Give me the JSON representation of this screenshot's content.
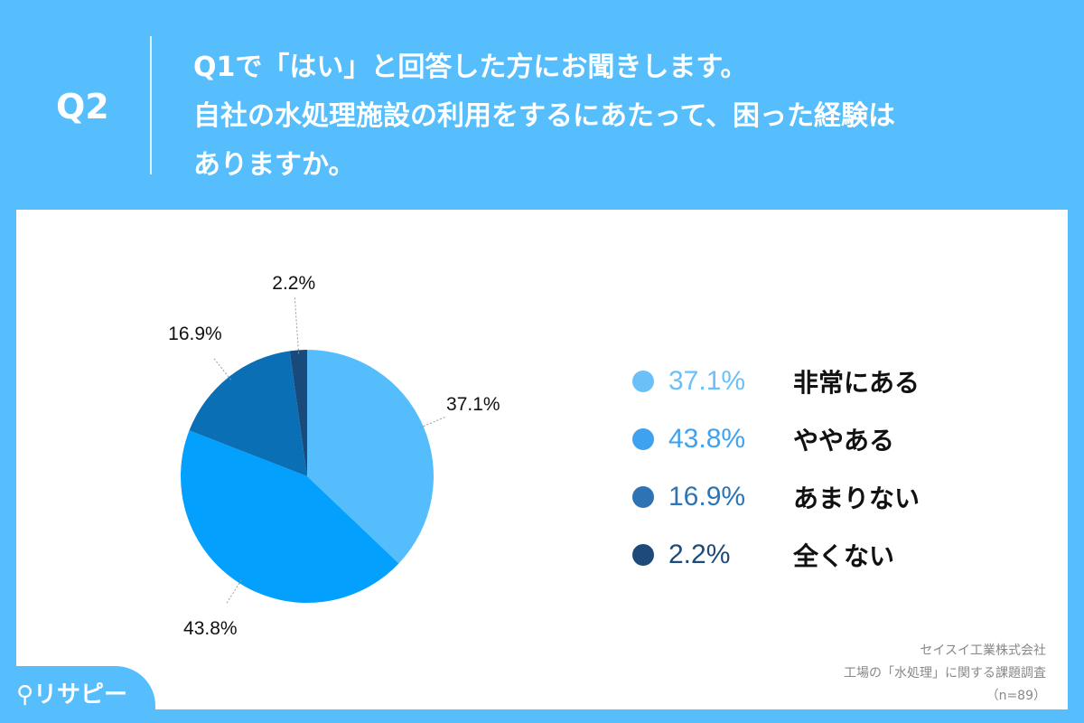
{
  "header": {
    "question_number": "Q2",
    "question_lines": [
      "Q1で「はい」と回答した方にお聞きします。",
      "自社の水処理施設の利用をするにあたって、困った経験は",
      "ありますか。"
    ]
  },
  "chart_data": {
    "type": "pie",
    "start": "top",
    "direction": "clockwise",
    "categories": [
      "非常にある",
      "ややある",
      "あまりない",
      "全くない"
    ],
    "values": [
      37.1,
      43.8,
      16.9,
      2.2
    ],
    "labels": [
      "37.1%",
      "43.8%",
      "16.9%",
      "2.2%"
    ],
    "colors": [
      "#56bdfd",
      "#03a0fe",
      "#0b6fb6",
      "#184a7b"
    ],
    "legend_colors": [
      "#6cc0f8",
      "#3fa2f0",
      "#2e74b5",
      "#1e4a7a"
    ],
    "legend": "right"
  },
  "source": {
    "lines": [
      "セイスイ工業株式会社",
      "工場の「水処理」に関する課題調査",
      "（n=89）"
    ]
  },
  "logo": {
    "text": "リサピー"
  }
}
